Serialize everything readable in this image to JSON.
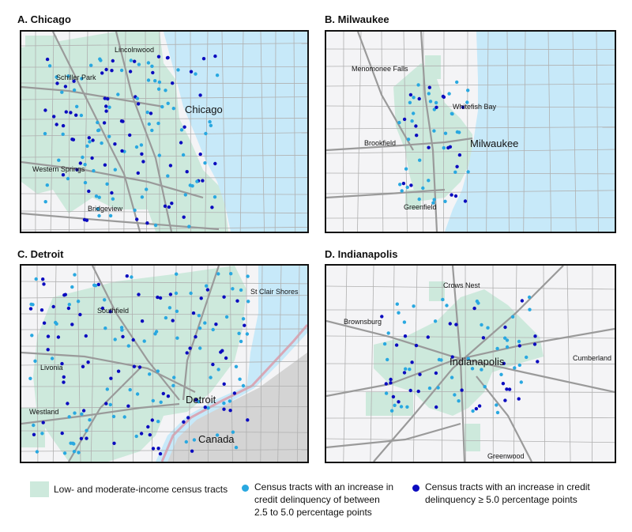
{
  "panels": [
    {
      "title": "A. Chicago",
      "labels": [
        "Lincolnwood",
        "Schiller Park",
        "Western Springs",
        "Bridgeview"
      ],
      "city": "Chicago"
    },
    {
      "title": "B. Milwaukee",
      "labels": [
        "Menomonee Falls",
        "Whitefish Bay",
        "Brookfield",
        "Greenfield"
      ],
      "city": "Milwaukee"
    },
    {
      "title": "C. Detroit",
      "labels": [
        "Southfield",
        "St Clair Shores",
        "Livonia",
        "Westland",
        "Canada"
      ],
      "city": "Detroit"
    },
    {
      "title": "D. Indianapolis",
      "labels": [
        "Crows Nest",
        "Brownsburg",
        "Cumberland",
        "Greenwood"
      ],
      "city": "Indianapolis"
    }
  ],
  "legend": {
    "lmi": "Low- and moderate-income census tracts",
    "mid_line1": "Census tracts with an increase in",
    "mid_line2": "credit delinquency of between",
    "mid_line3": "2.5 to 5.0 percentage points",
    "high_line1": "Census tracts with an increase in credit",
    "high_line2": "delinquency ≥ 5.0 percentage points"
  },
  "colors": {
    "lmi_fill": "#cde9dc",
    "water": "#c7e9f9",
    "mid_dot": "#29a8e0",
    "high_dot": "#0b0bbf",
    "road": "#a8a8a8",
    "land": "#f4f4f6",
    "canada": "#d4d4d4"
  }
}
